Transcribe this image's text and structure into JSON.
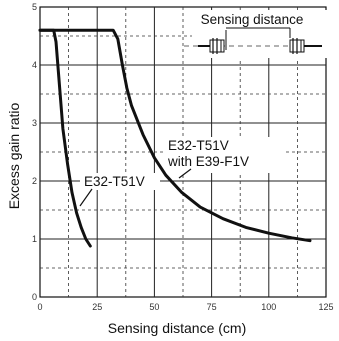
{
  "chart_data": {
    "type": "line",
    "title": "",
    "xlabel": "Sensing distance (cm)",
    "ylabel": "Excess gain ratio",
    "xlim": [
      0,
      125
    ],
    "ylim": [
      0,
      5
    ],
    "x_ticks": [
      "0",
      "25",
      "50",
      "75",
      "100",
      "125"
    ],
    "y_ticks": [
      "0",
      "1",
      "2",
      "3",
      "4",
      "5"
    ],
    "grid": true,
    "series": [
      {
        "name": "E32-T51V",
        "points": [
          [
            0,
            4.6
          ],
          [
            6,
            4.6
          ],
          [
            7,
            4.4
          ],
          [
            8,
            3.9
          ],
          [
            9,
            3.4
          ],
          [
            10,
            2.9
          ],
          [
            12,
            2.3
          ],
          [
            14,
            1.8
          ],
          [
            16,
            1.45
          ],
          [
            18,
            1.2
          ],
          [
            20,
            1.0
          ],
          [
            22,
            0.88
          ]
        ]
      },
      {
        "name": "E32-T51V with E39-F1V",
        "points": [
          [
            0,
            4.6
          ],
          [
            32,
            4.6
          ],
          [
            34,
            4.45
          ],
          [
            36,
            4.0
          ],
          [
            38,
            3.6
          ],
          [
            40,
            3.3
          ],
          [
            45,
            2.8
          ],
          [
            50,
            2.4
          ],
          [
            55,
            2.1
          ],
          [
            62,
            1.8
          ],
          [
            70,
            1.55
          ],
          [
            80,
            1.35
          ],
          [
            90,
            1.2
          ],
          [
            100,
            1.1
          ],
          [
            110,
            1.02
          ],
          [
            118,
            0.97
          ]
        ]
      }
    ],
    "annotations": [
      {
        "text": "E32-T51V",
        "series": 0
      },
      {
        "text": "E32-T51V",
        "series": 1
      },
      {
        "text": "with E39-F1V",
        "series": 1
      },
      {
        "text": "Sensing distance",
        "series": null
      }
    ]
  }
}
